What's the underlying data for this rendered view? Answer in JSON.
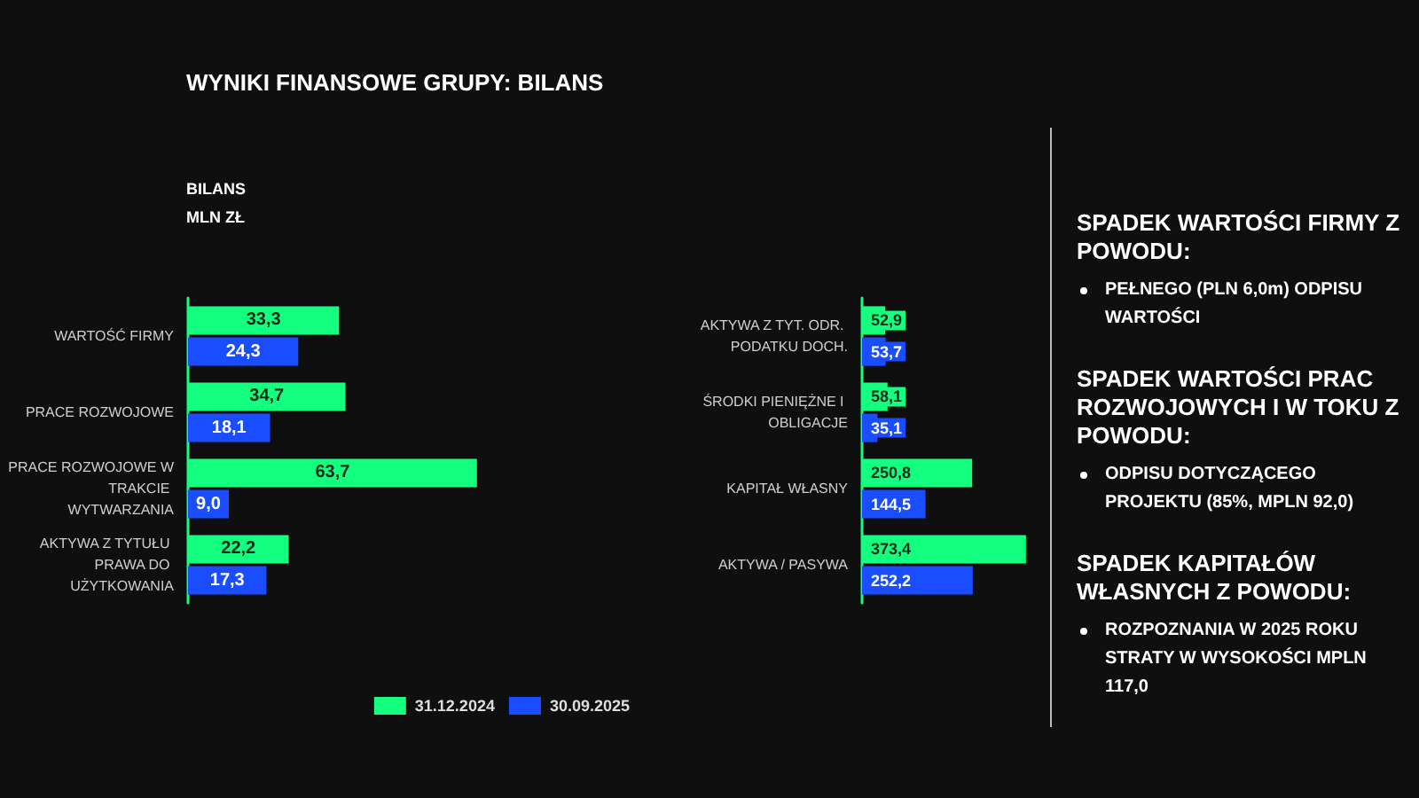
{
  "chart_data": [
    {
      "type": "bar",
      "orientation": "horizontal",
      "title": "WYNIKI FINANSOWE GRUPY: BILANS",
      "subtitle": "BILANS",
      "annotations": [
        "MLN ZŁ"
      ],
      "categories": [
        "WARTOŚĆ FIRMY",
        "PRACE ROZWOJOWE",
        "PRACE ROZWOJOWE W TRAKCIE WYTWARZANIA",
        "AKTYWA Z TYTUŁU PRAWA DO UŻYTKOWANIA"
      ],
      "series": [
        {
          "name": "31.12.2024",
          "color": "#14ff80",
          "values": [
            33.3,
            34.7,
            63.7,
            22.2
          ],
          "value_labels": [
            "33,3",
            "34,7",
            "63,7",
            "22,2"
          ]
        },
        {
          "name": "30.09.2025",
          "color": "#1a4dff",
          "values": [
            24.3,
            18.1,
            9.0,
            17.3
          ],
          "value_labels": [
            "24,3",
            "18,1",
            "9,0",
            "17,3"
          ]
        }
      ],
      "grid": false,
      "legend": "bottom right"
    },
    {
      "type": "bar",
      "orientation": "horizontal",
      "categories": [
        "AKTYWA Z TYT. ODR. PODATKU DOCH.",
        "ŚRODKI PIENIĘŻNE I OBLIGACJE",
        "KAPITAŁ WŁASNY",
        "AKTYWA / PASYWA"
      ],
      "series": [
        {
          "color": "#14ff80",
          "values": [
            52.9,
            58.1,
            250.8,
            373.4
          ],
          "value_labels": [
            "52,9",
            "58,1",
            "250,8",
            "373,4"
          ]
        },
        {
          "color": "#1a4dff",
          "values": [
            53.7,
            35.1,
            144.5,
            252.2
          ],
          "value_labels": [
            "53,7",
            "35,1",
            "144,5",
            "252,2"
          ]
        }
      ],
      "grid": false,
      "annotations": [
        "SPADEK WARTOŚCI FIRMY Z POWODU:",
        "PEŁNEGO (PLN 6,0m) ODPISU WARTOŚCI",
        "SPADEK WARTOŚCI PRAC ROZWOJOWYCH I W TOKU Z POWODU:",
        "ODPISU DOTYCZĄCEGO PROJEKTU (85%, MPLN 92,0)",
        "SPADEK KAPITAŁÓW WŁASNYCH Z POWODU:",
        "ROZPOZNANIA W 2025 ROKU STRATY W WYSOKOŚCI MPLN 117,0"
      ]
    }
  ]
}
